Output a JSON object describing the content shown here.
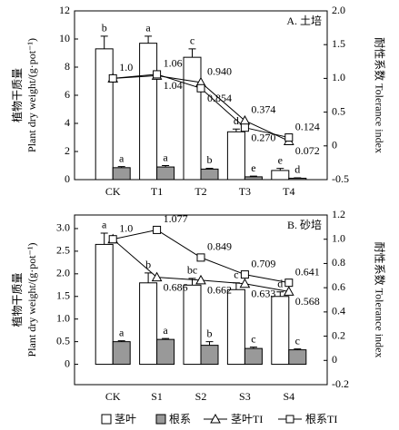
{
  "chart_data": [
    {
      "type": "bar",
      "title": "A. 土培",
      "y_label": [
        "植物干质量",
        "Plant dry weight/(g·pot⁻¹)"
      ],
      "y2_label": "耐性系数 Tolerance index",
      "categories": [
        "CK",
        "T1",
        "T2",
        "T3",
        "T4"
      ],
      "ylim": [
        0,
        12
      ],
      "yticks": [
        0,
        2,
        4,
        6,
        8,
        10,
        12
      ],
      "y2lim": [
        -0.5,
        2
      ],
      "y2ticks": [
        -0.5,
        0,
        0.5,
        {
          "value": 1,
          "label": "1.0"
        },
        1.5,
        {
          "value": 2,
          "label": "2.0"
        }
      ],
      "series": [
        {
          "type": "bar",
          "color": "#ffffff",
          "values": [
            9.3,
            9.7,
            8.7,
            3.4,
            0.65
          ],
          "errors": [
            0.9,
            0.5,
            0.6,
            0.2,
            0.15
          ],
          "letters": [
            "b",
            "a",
            "c",
            "d",
            "e"
          ]
        },
        {
          "type": "bar",
          "color": "#999999",
          "values": [
            0.85,
            0.9,
            0.75,
            0.2,
            0.1
          ],
          "errors": [
            0.08,
            0.1,
            0.06,
            0.05,
            0.03
          ],
          "letters": [
            "a",
            "a",
            "b",
            "e",
            "d"
          ]
        },
        {
          "type": "line",
          "marker": "triangle",
          "axis": "y2",
          "color": "#000000",
          "values": [
            1,
            1.04,
            0.94,
            0.374,
            0.072
          ],
          "value_labels": [
            "1.0",
            "1.04",
            "0.940",
            "0.374",
            "0.072"
          ]
        },
        {
          "type": "line",
          "marker": "square",
          "axis": "y2",
          "color": "#000000",
          "values": [
            1,
            1.06,
            0.854,
            0.27,
            0.124
          ],
          "value_labels": [
            null,
            "1.06",
            "0.854",
            "0.270",
            "0.124"
          ]
        }
      ]
    },
    {
      "type": "bar",
      "title": "B. 砂培",
      "y_label": [
        "植物干质量",
        "Plant dry weight/(g·pot⁻¹)"
      ],
      "y2_label": "耐性系数 Tolerance index",
      "categories": [
        "CK",
        "S1",
        "S2",
        "S3",
        "S4"
      ],
      "ylim": [
        -0.45,
        3.3
      ],
      "yticks": [
        0,
        0.5,
        {
          "value": 1,
          "label": "1.0"
        },
        1.5,
        {
          "value": 2,
          "label": "2.0"
        },
        2.5,
        {
          "value": 3,
          "label": "3.0"
        }
      ],
      "y2lim": [
        -0.2,
        1.2
      ],
      "y2ticks": [
        -0.2,
        0,
        0.2,
        0.4,
        0.6,
        0.8,
        {
          "value": 1,
          "label": "1.0"
        },
        1.2
      ],
      "series": [
        {
          "name": "茎叶",
          "type": "bar",
          "color": "#ffffff",
          "values": [
            2.65,
            1.8,
            1.75,
            1.65,
            1.5
          ],
          "errors": [
            0.25,
            0.22,
            0.15,
            0.15,
            0.1
          ],
          "letters": [
            "a",
            "b",
            "bc",
            "c",
            "d"
          ]
        },
        {
          "name": "根系",
          "type": "bar",
          "color": "#999999",
          "values": [
            0.5,
            0.55,
            0.42,
            0.35,
            0.32
          ],
          "errors": [
            0.02,
            0.02,
            0.08,
            0.03,
            0.02
          ],
          "letters": [
            "a",
            "a",
            "b",
            "c",
            "c"
          ]
        },
        {
          "name": "茎叶TI",
          "type": "line",
          "marker": "triangle",
          "axis": "y2",
          "color": "#000000",
          "values": [
            1,
            0.686,
            0.662,
            0.633,
            0.568
          ],
          "value_labels": [
            "1.0",
            "0.686",
            "0.662",
            "0.633",
            "0.568"
          ]
        },
        {
          "name": "根系TI",
          "type": "line",
          "marker": "square",
          "axis": "y2",
          "color": "#000000",
          "values": [
            1,
            1.077,
            0.849,
            0.709,
            0.641
          ],
          "value_labels": [
            null,
            "1.077",
            "0.849",
            "0.709",
            "0.641"
          ]
        }
      ]
    }
  ]
}
